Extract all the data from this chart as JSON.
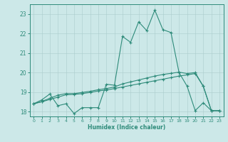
{
  "x": [
    0,
    1,
    2,
    3,
    4,
    5,
    6,
    7,
    8,
    9,
    10,
    11,
    12,
    13,
    14,
    15,
    16,
    17,
    18,
    19,
    20,
    21,
    22,
    23
  ],
  "line1": [
    18.4,
    18.6,
    18.9,
    18.3,
    18.4,
    17.9,
    18.2,
    18.2,
    18.2,
    19.4,
    19.35,
    21.85,
    21.55,
    22.6,
    22.15,
    23.2,
    22.2,
    22.05,
    20.0,
    19.3,
    18.05,
    18.45,
    18.05,
    18.05
  ],
  "line2": [
    18.4,
    18.5,
    18.62,
    18.74,
    18.86,
    18.88,
    18.92,
    18.98,
    19.06,
    19.1,
    19.18,
    19.26,
    19.34,
    19.42,
    19.5,
    19.58,
    19.66,
    19.74,
    19.82,
    19.88,
    19.95,
    19.3,
    18.05,
    18.05
  ],
  "line3": [
    18.4,
    18.52,
    18.68,
    18.84,
    18.92,
    18.92,
    18.98,
    19.04,
    19.12,
    19.18,
    19.26,
    19.42,
    19.52,
    19.62,
    19.72,
    19.82,
    19.9,
    19.96,
    20.02,
    19.95,
    20.0,
    19.3,
    18.05,
    18.05
  ],
  "color": "#2e8b7a",
  "bg_color": "#cce8e8",
  "grid_color": "#aacccc",
  "ylim": [
    17.75,
    23.5
  ],
  "xlim": [
    -0.5,
    23.5
  ],
  "yticks": [
    18,
    19,
    20,
    21,
    22,
    23
  ],
  "xticks": [
    0,
    1,
    2,
    3,
    4,
    5,
    6,
    7,
    8,
    9,
    10,
    11,
    12,
    13,
    14,
    15,
    16,
    17,
    18,
    19,
    20,
    21,
    22,
    23
  ],
  "xlabel": "Humidex (Indice chaleur)",
  "marker": "+",
  "markersize": 3.0,
  "linewidth": 0.8
}
